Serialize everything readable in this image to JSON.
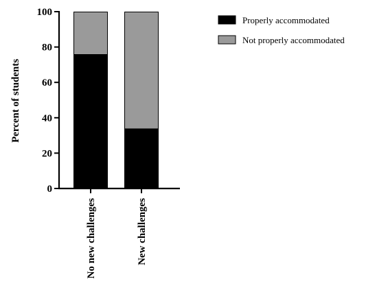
{
  "chart_data": {
    "type": "bar",
    "stacked": true,
    "percent_stacked": true,
    "categories": [
      "No new challenges",
      "New challenges"
    ],
    "series": [
      {
        "name": "Properly accommodated",
        "values": [
          76,
          34
        ],
        "color": "#000000"
      },
      {
        "name": "Not properly accommodated",
        "values": [
          24,
          66
        ],
        "color": "#9a9a9a"
      }
    ],
    "xlabel": "",
    "ylabel": "Percent of students",
    "ylim": [
      0,
      100
    ],
    "yticks": [
      0,
      20,
      40,
      60,
      80,
      100
    ],
    "ytick_labels": [
      "0",
      "20",
      "40",
      "60",
      "80",
      "100"
    ],
    "grid": false,
    "legend_position": "top-right"
  }
}
